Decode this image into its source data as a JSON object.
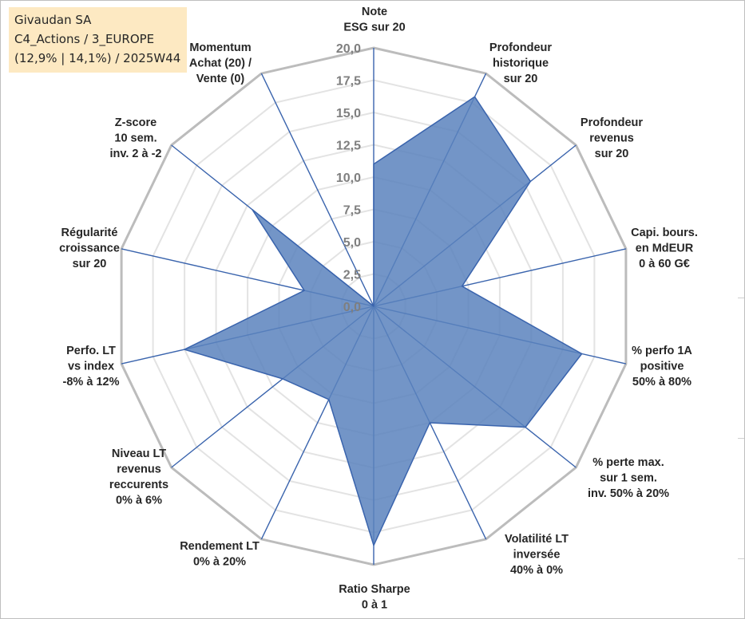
{
  "title_box": {
    "line1": "Givaudan SA",
    "line2": "C4_Actions / 3_EUROPE",
    "line3": "(12,9% | 14,1%) / 2025W44"
  },
  "colors": {
    "fill": "#5b82bd",
    "stroke": "#3a64ad",
    "spoke": "#3a64ad",
    "grid_outer": "#bcbcbc",
    "grid_inner": "#e3e3e3",
    "title_bg": "#fde9c2"
  },
  "chart_data": {
    "type": "radar",
    "rlim": [
      0,
      20
    ],
    "tick_labels": [
      "0,0",
      "2,5",
      "5,0",
      "7,5",
      "10,0",
      "12,5",
      "15,0",
      "17,5",
      "20,0"
    ],
    "axes": [
      [
        "Note",
        "ESG sur 20"
      ],
      [
        "Profondeur",
        "historique",
        "sur 20"
      ],
      [
        "Profondeur",
        "revenus",
        "sur 20"
      ],
      [
        "Capi. bours.",
        "en MdEUR",
        "0 à 60 G€"
      ],
      [
        "% perfo 1A",
        "positive",
        "50% à 80%"
      ],
      [
        "% perte max.",
        "sur 1 sem.",
        "inv. 50% à 20%"
      ],
      [
        "Volatilité LT",
        "inversée",
        "40% à 0%"
      ],
      [
        "Ratio Sharpe",
        "0 à 1"
      ],
      [
        "Rendement LT",
        "0% à 20%"
      ],
      [
        "Niveau LT",
        "revenus",
        "reccurents",
        "0% à 6%"
      ],
      [
        "Perfo. LT",
        "vs index",
        "-8% à 12%"
      ],
      [
        "Régularité",
        "croissance",
        "sur 20"
      ],
      [
        "Z-score",
        "10 sem.",
        "inv. 2 à -2"
      ],
      [
        "Momentum",
        "Achat (20) /",
        "Vente (0)"
      ]
    ],
    "values": [
      11.0,
      18.0,
      15.5,
      7.0,
      16.5,
      15.0,
      10.0,
      18.5,
      8.0,
      9.0,
      15.0,
      5.5,
      12.0,
      0.0
    ],
    "grid": true,
    "legend": "none"
  }
}
